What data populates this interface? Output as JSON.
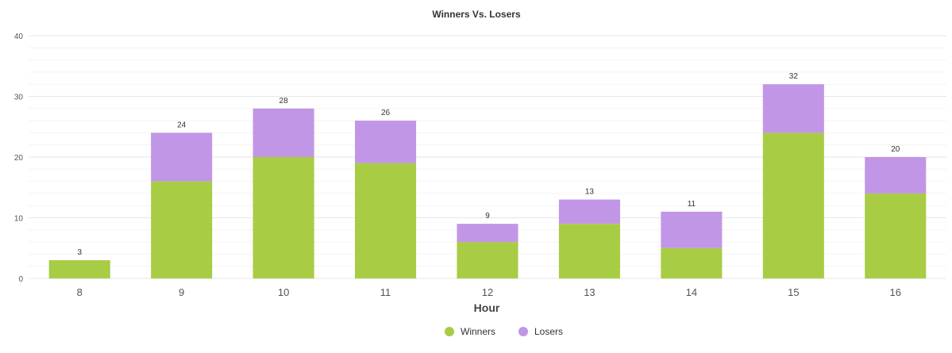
{
  "chart_data": {
    "type": "bar",
    "stacked": true,
    "title": "Winners Vs. Losers",
    "xlabel": "Hour",
    "ylabel": "",
    "ylim": [
      0,
      40
    ],
    "yticks": [
      0,
      10,
      20,
      30,
      40
    ],
    "categories": [
      "8",
      "9",
      "10",
      "11",
      "12",
      "13",
      "14",
      "15",
      "16"
    ],
    "series": [
      {
        "name": "Winners",
        "color": "#a8cc44",
        "values": [
          3,
          16,
          20,
          19,
          6,
          9,
          5,
          24,
          14
        ]
      },
      {
        "name": "Losers",
        "color": "#c296e6",
        "values": [
          0,
          8,
          8,
          7,
          3,
          4,
          6,
          8,
          6
        ]
      }
    ],
    "totals": [
      3,
      24,
      28,
      26,
      9,
      13,
      11,
      32,
      20
    ],
    "grid": true,
    "legend": "bottom-center"
  }
}
